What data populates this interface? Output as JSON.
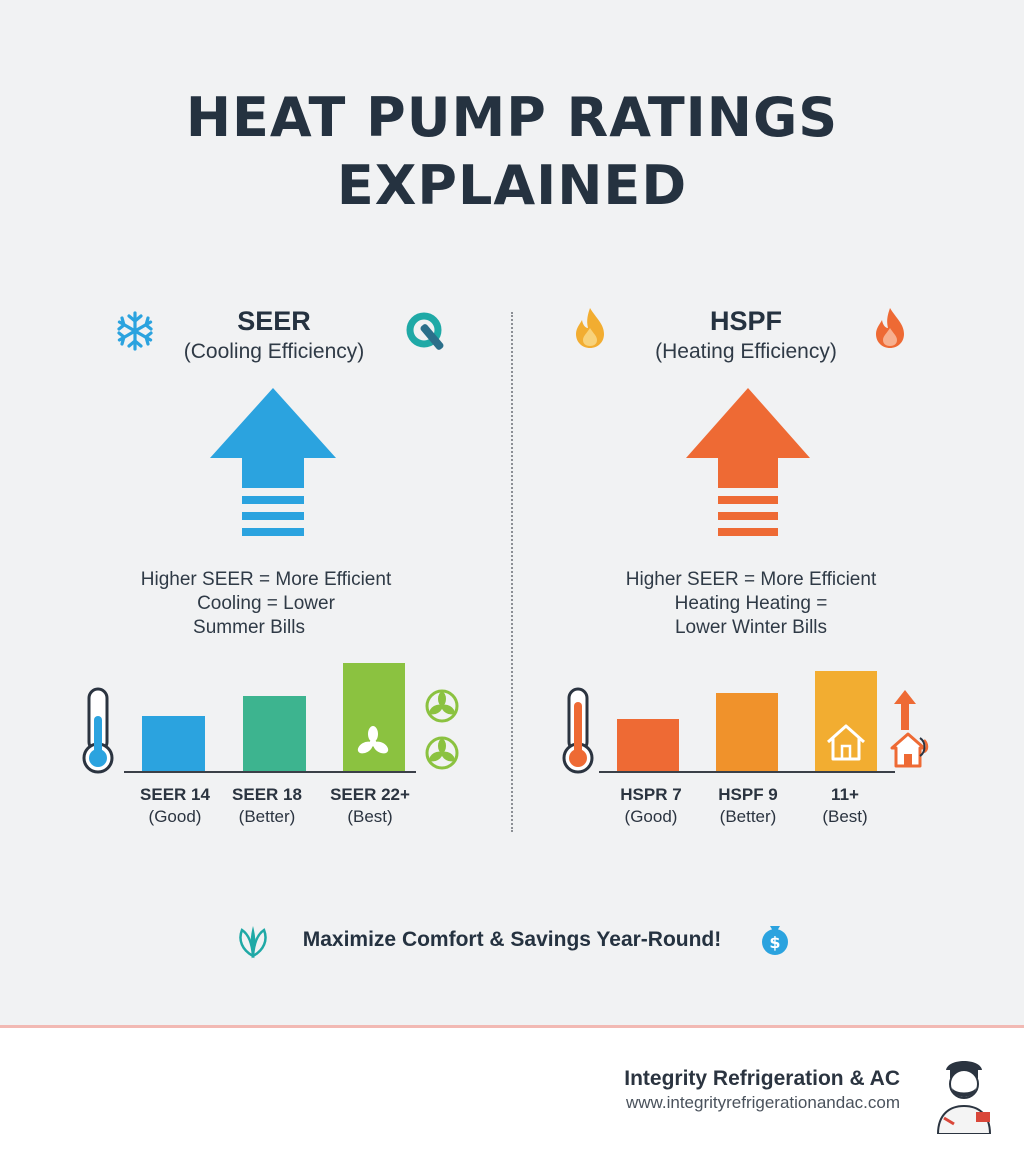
{
  "title": {
    "line1": "HEAT PUMP RATINGS",
    "line2": "EXPLAINED"
  },
  "seer": {
    "name": "SEER",
    "subtitle": "(Cooling Efficiency)",
    "desc1": "Higher SEER = More Efficient",
    "desc2": "Cooling = Lower",
    "desc3": "Summer Bills",
    "accent": "#2ba3df",
    "levels": [
      {
        "label": "SEER 14",
        "rank": "(Good)",
        "color": "#2ba3df"
      },
      {
        "label": "SEER 18",
        "rank": "(Better)",
        "color": "#3db48f"
      },
      {
        "label": "SEER 22+",
        "rank": "(Best)",
        "color": "#8bc240"
      }
    ]
  },
  "hspf": {
    "name": "HSPF",
    "subtitle": "(Heating Efficiency)",
    "desc1": "Higher SEER = More Efficient",
    "desc2": "Heating Heating =",
    "desc3": "Lower Winter Bills",
    "accent": "#ee6a34",
    "levels": [
      {
        "label": "HSPR 7",
        "rank": "(Good)",
        "color": "#ee6a34"
      },
      {
        "label": "HSPF 9",
        "rank": "(Better)",
        "color": "#f0922b"
      },
      {
        "label": "11+",
        "rank": "(Best)",
        "color": "#f2ad31"
      }
    ]
  },
  "tagline": "Maximize Comfort & Savings Year-Round!",
  "company": {
    "name": "Integrity Refrigeration & AC",
    "url": "www.integrityrefrigerationandac.com"
  }
}
